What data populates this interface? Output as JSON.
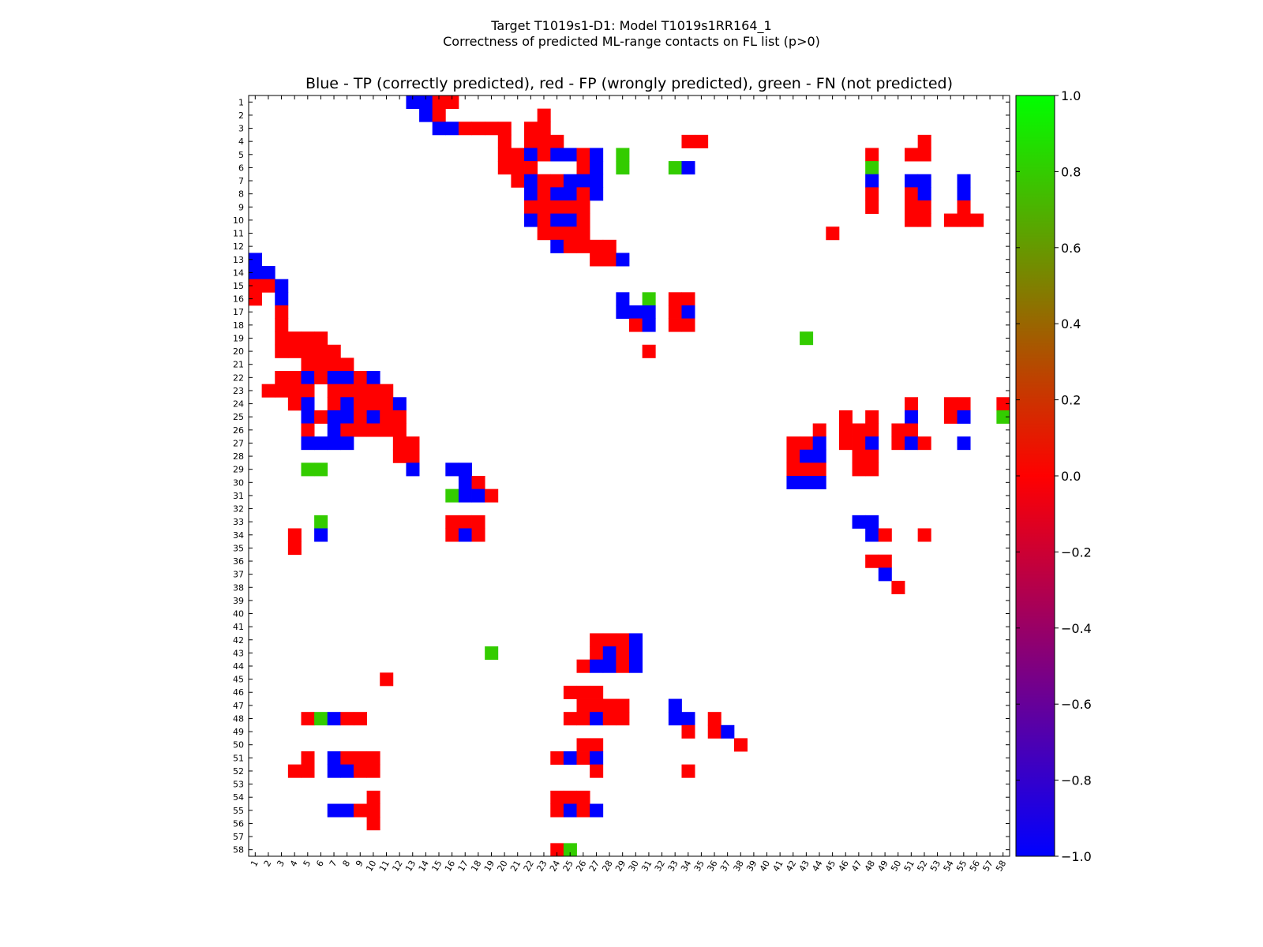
{
  "chart_data": {
    "type": "heatmap",
    "suptitle_line1": "Target T1019s1-D1: Model T1019s1RR164_1",
    "suptitle_line2": "Correctness of predicted ML-range contacts on FL list (p>0)",
    "title": "Blue - TP (correctly predicted), red - FP (wrongly predicted), green - FN (not predicted)",
    "n": 58,
    "x_ticks": [
      "1",
      "2",
      "3",
      "4",
      "5",
      "6",
      "7",
      "8",
      "9",
      "10",
      "11",
      "12",
      "13",
      "14",
      "15",
      "16",
      "17",
      "18",
      "19",
      "20",
      "21",
      "22",
      "23",
      "24",
      "25",
      "26",
      "27",
      "28",
      "29",
      "30",
      "31",
      "32",
      "33",
      "34",
      "35",
      "36",
      "37",
      "38",
      "39",
      "40",
      "41",
      "42",
      "43",
      "44",
      "45",
      "46",
      "47",
      "48",
      "49",
      "50",
      "51",
      "52",
      "53",
      "54",
      "55",
      "56",
      "57",
      "58"
    ],
    "y_ticks": [
      "1",
      "2",
      "3",
      "4",
      "5",
      "6",
      "7",
      "8",
      "9",
      "10",
      "11",
      "12",
      "13",
      "14",
      "15",
      "16",
      "17",
      "18",
      "19",
      "20",
      "21",
      "22",
      "23",
      "24",
      "25",
      "26",
      "27",
      "28",
      "29",
      "30",
      "31",
      "32",
      "33",
      "34",
      "35",
      "36",
      "37",
      "38",
      "39",
      "40",
      "41",
      "42",
      "43",
      "44",
      "45",
      "46",
      "47",
      "48",
      "49",
      "50",
      "51",
      "52",
      "53",
      "54",
      "55",
      "56",
      "57",
      "58"
    ],
    "value_legend": {
      "TP": -1.0,
      "FP": 0.0,
      "FN": 1.0
    },
    "colorbar": {
      "range": [
        -1.0,
        1.0
      ],
      "ticks": [
        "1.0",
        "0.8",
        "0.6",
        "0.4",
        "0.2",
        "0.0",
        "−0.2",
        "−0.4",
        "−0.6",
        "−0.8",
        "−1.0"
      ],
      "colors": [
        "#0000ff",
        "#ff0000",
        "#00ff00"
      ]
    },
    "cells": {
      "1": {
        "13": "TP",
        "14": "TP",
        "15": "FP",
        "16": "FP"
      },
      "2": {
        "14": "TP",
        "15": "FP",
        "23": "FP"
      },
      "3": {
        "15": "TP",
        "16": "TP",
        "17": "FP",
        "18": "FP",
        "19": "FP",
        "20": "FP",
        "22": "FP",
        "23": "FP"
      },
      "4": {
        "20": "FP",
        "22": "FP",
        "23": "FP",
        "24": "FP",
        "34": "FP",
        "35": "FP",
        "52": "FP"
      },
      "5": {
        "20": "FP",
        "21": "FP",
        "22": "TP",
        "23": "FP",
        "24": "TP",
        "25": "TP",
        "26": "FP",
        "27": "TP",
        "29": "FN",
        "48": "FP",
        "51": "FP",
        "52": "FP"
      },
      "6": {
        "20": "FP",
        "21": "FP",
        "22": "FP",
        "26": "FP",
        "27": "TP",
        "29": "FN",
        "33": "FN",
        "34": "TP",
        "48": "FN"
      },
      "7": {
        "21": "FP",
        "22": "TP",
        "23": "FP",
        "24": "FP",
        "25": "TP",
        "26": "TP",
        "27": "TP",
        "48": "TP",
        "51": "TP",
        "52": "TP",
        "55": "TP"
      },
      "8": {
        "22": "TP",
        "23": "FP",
        "24": "TP",
        "25": "TP",
        "26": "FP",
        "27": "TP",
        "48": "FP",
        "51": "FP",
        "52": "TP",
        "55": "TP"
      },
      "9": {
        "22": "FP",
        "23": "FP",
        "24": "FP",
        "25": "FP",
        "26": "FP",
        "48": "FP",
        "51": "FP",
        "52": "FP",
        "55": "FP"
      },
      "10": {
        "22": "TP",
        "23": "FP",
        "24": "TP",
        "25": "TP",
        "26": "FP",
        "51": "FP",
        "52": "FP",
        "54": "FP",
        "55": "FP",
        "56": "FP"
      },
      "11": {
        "23": "FP",
        "24": "FP",
        "25": "FP",
        "26": "FP",
        "45": "FP"
      },
      "12": {
        "24": "TP",
        "25": "FP",
        "26": "FP",
        "27": "FP",
        "28": "FP"
      },
      "13": {
        "1": "TP",
        "27": "FP",
        "28": "FP",
        "29": "TP"
      },
      "14": {
        "1": "TP",
        "2": "TP"
      },
      "15": {
        "1": "FP",
        "2": "FP",
        "3": "TP"
      },
      "16": {
        "1": "FP",
        "3": "TP",
        "29": "TP",
        "31": "FN",
        "33": "FP",
        "34": "FP"
      },
      "17": {
        "3": "FP",
        "29": "TP",
        "30": "TP",
        "31": "TP",
        "33": "FP",
        "34": "TP"
      },
      "18": {
        "3": "FP",
        "30": "FP",
        "31": "TP",
        "33": "FP",
        "34": "FP"
      },
      "19": {
        "3": "FP",
        "4": "FP",
        "5": "FP",
        "6": "FP",
        "43": "FN"
      },
      "20": {
        "3": "FP",
        "4": "FP",
        "5": "FP",
        "6": "FP",
        "7": "FP",
        "31": "FP"
      },
      "21": {
        "5": "FP",
        "6": "FP",
        "7": "FP",
        "8": "FP"
      },
      "22": {
        "3": "FP",
        "4": "FP",
        "5": "TP",
        "6": "FP",
        "7": "TP",
        "8": "TP",
        "9": "FP",
        "10": "TP"
      },
      "23": {
        "2": "FP",
        "3": "FP",
        "4": "FP",
        "5": "FP",
        "7": "FP",
        "8": "FP",
        "9": "FP",
        "10": "FP",
        "11": "FP"
      },
      "24": {
        "4": "FP",
        "5": "TP",
        "7": "FP",
        "8": "TP",
        "9": "FP",
        "10": "FP",
        "11": "FP",
        "12": "TP",
        "51": "FP",
        "54": "FP",
        "55": "FP",
        "58": "FP"
      },
      "25": {
        "5": "TP",
        "6": "FP",
        "7": "TP",
        "8": "TP",
        "9": "FP",
        "10": "TP",
        "11": "FP",
        "12": "FP",
        "46": "FP",
        "48": "FP",
        "51": "TP",
        "54": "FP",
        "55": "TP",
        "58": "FN"
      },
      "26": {
        "5": "FP",
        "7": "TP",
        "8": "FP",
        "9": "FP",
        "10": "FP",
        "11": "FP",
        "12": "FP",
        "44": "FP",
        "46": "FP",
        "47": "FP",
        "48": "FP",
        "50": "FP",
        "51": "FP"
      },
      "27": {
        "5": "TP",
        "6": "TP",
        "7": "TP",
        "8": "TP",
        "12": "FP",
        "13": "FP",
        "42": "FP",
        "43": "FP",
        "44": "TP",
        "46": "FP",
        "47": "FP",
        "48": "TP",
        "50": "FP",
        "51": "TP",
        "52": "FP",
        "55": "TP"
      },
      "28": {
        "12": "FP",
        "13": "FP",
        "42": "FP",
        "43": "TP",
        "44": "TP",
        "47": "FP",
        "48": "FP"
      },
      "29": {
        "5": "FN",
        "6": "FN",
        "13": "TP",
        "16": "TP",
        "17": "TP",
        "42": "FP",
        "43": "FP",
        "44": "FP",
        "47": "FP",
        "48": "FP"
      },
      "30": {
        "17": "TP",
        "18": "FP",
        "42": "TP",
        "43": "TP",
        "44": "TP"
      },
      "31": {
        "16": "FN",
        "17": "TP",
        "18": "TP",
        "19": "FP"
      },
      "33": {
        "6": "FN",
        "16": "FP",
        "17": "FP",
        "18": "FP",
        "47": "TP",
        "48": "TP"
      },
      "34": {
        "4": "FP",
        "6": "TP",
        "16": "FP",
        "17": "TP",
        "18": "FP",
        "48": "TP",
        "49": "FP",
        "52": "FP"
      },
      "35": {
        "4": "FP"
      },
      "36": {
        "48": "FP",
        "49": "FP"
      },
      "37": {
        "49": "TP"
      },
      "38": {
        "50": "FP"
      },
      "42": {
        "27": "FP",
        "28": "FP",
        "29": "FP",
        "30": "TP"
      },
      "43": {
        "19": "FN",
        "27": "FP",
        "28": "TP",
        "29": "FP",
        "30": "TP"
      },
      "44": {
        "26": "FP",
        "27": "TP",
        "28": "TP",
        "29": "FP",
        "30": "TP"
      },
      "45": {
        "11": "FP"
      },
      "46": {
        "25": "FP",
        "26": "FP",
        "27": "FP"
      },
      "47": {
        "26": "FP",
        "27": "FP",
        "28": "FP",
        "29": "FP",
        "33": "TP"
      },
      "48": {
        "5": "FP",
        "6": "FN",
        "7": "TP",
        "8": "FP",
        "9": "FP",
        "25": "FP",
        "26": "FP",
        "27": "TP",
        "28": "FP",
        "29": "FP",
        "33": "TP",
        "34": "TP",
        "36": "FP"
      },
      "49": {
        "34": "FP",
        "36": "FP",
        "37": "TP"
      },
      "50": {
        "26": "FP",
        "27": "FP",
        "38": "FP"
      },
      "51": {
        "5": "FP",
        "7": "TP",
        "8": "FP",
        "9": "FP",
        "10": "FP",
        "24": "FP",
        "25": "TP",
        "26": "FP",
        "27": "TP"
      },
      "52": {
        "4": "FP",
        "5": "FP",
        "7": "TP",
        "8": "TP",
        "9": "FP",
        "10": "FP",
        "27": "FP",
        "34": "FP"
      },
      "54": {
        "10": "FP",
        "24": "FP",
        "25": "FP",
        "26": "FP"
      },
      "55": {
        "7": "TP",
        "8": "TP",
        "9": "FP",
        "10": "FP",
        "24": "FP",
        "25": "TP",
        "26": "FP",
        "27": "TP"
      },
      "56": {
        "10": "FP"
      },
      "58": {
        "24": "FP",
        "25": "FN"
      }
    }
  }
}
